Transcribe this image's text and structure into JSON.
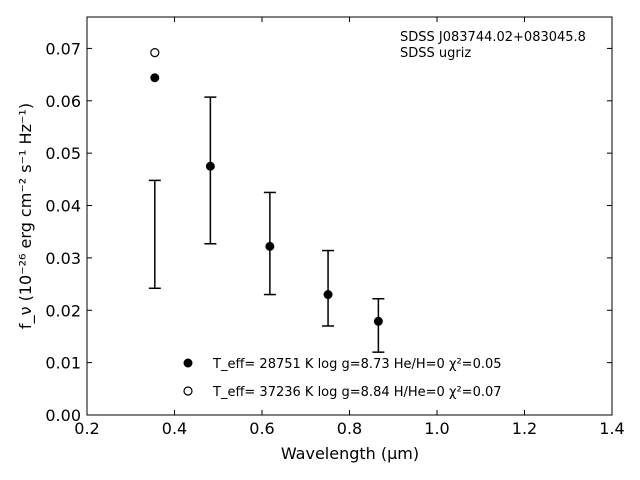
{
  "chart_data": {
    "type": "scatter",
    "xlabel": "Wavelength (μm)",
    "ylabel": "f_ν (10⁻²⁶ erg cm⁻² s⁻¹ Hz⁻¹)",
    "xlim": [
      0.2,
      1.4
    ],
    "ylim": [
      0.0,
      0.076
    ],
    "xticks": [
      "0.2",
      "0.4",
      "0.6",
      "0.8",
      "1.0",
      "1.2",
      "1.4"
    ],
    "yticks": [
      "0.00",
      "0.01",
      "0.02",
      "0.03",
      "0.04",
      "0.05",
      "0.06",
      "0.07"
    ],
    "annotation": [
      "SDSS J083744.02+083045.8",
      "SDSS ugriz"
    ],
    "observed": {
      "x": [
        0.355,
        0.482,
        0.618,
        0.751,
        0.866
      ],
      "y_low": [
        0.0242,
        0.0327,
        0.023,
        0.017,
        0.012
      ],
      "y_high": [
        0.0448,
        0.0607,
        0.0425,
        0.0314,
        0.0222
      ]
    },
    "series": [
      {
        "name": "T_eff= 28751 K  log g=8.73  He/H=0  χ²=0.05",
        "marker": "filled-circle",
        "x": [
          0.355,
          0.482,
          0.618,
          0.751,
          0.866
        ],
        "y": [
          0.0644,
          0.0475,
          0.0322,
          0.023,
          0.0179
        ]
      },
      {
        "name": "T_eff= 37236 K  log g=8.84  H/He=0  χ²=0.07",
        "marker": "open-circle",
        "x": [
          0.355
        ],
        "y": [
          0.0692
        ]
      }
    ],
    "legend_position": "bottom-center",
    "grid": false
  }
}
